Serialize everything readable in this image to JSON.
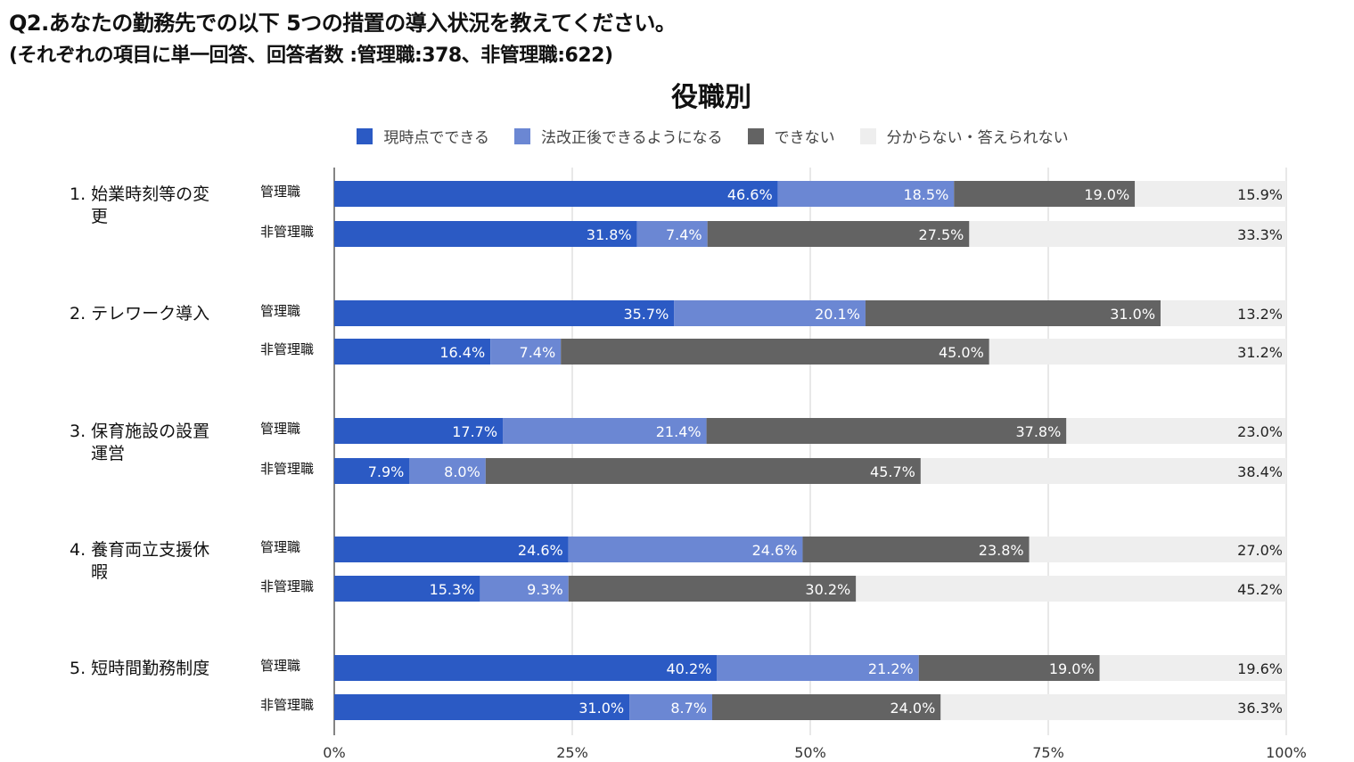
{
  "header": {
    "question": "Q2.あなたの勤務先での以下 5つの措置の導入状況を教えてください。",
    "subtitle": "(それぞれの項目に単一回答、回答者数 :管理職:378、非管理職:622)"
  },
  "chart_data": {
    "type": "bar",
    "orientation": "horizontal",
    "stacked": "percent",
    "title": "役職別",
    "legend_position": "top",
    "xlim": [
      0,
      100
    ],
    "x_ticks": [
      "0%",
      "25%",
      "50%",
      "75%",
      "100%"
    ],
    "series": [
      {
        "name": "現時点でできる",
        "color": "#2b5ac4"
      },
      {
        "name": "法改正後できるようになる",
        "color": "#6b87d3"
      },
      {
        "name": "できない",
        "color": "#636363"
      },
      {
        "name": "分からない・答えられない",
        "color": "#eeeeee"
      }
    ],
    "categories": [
      {
        "label": "1. 始業時刻等の変更",
        "groups": [
          {
            "label": "管理職",
            "values": [
              46.6,
              18.5,
              19.0,
              15.9
            ]
          },
          {
            "label": "非管理職",
            "values": [
              31.8,
              7.4,
              27.5,
              33.3
            ]
          }
        ]
      },
      {
        "label": "2. テレワーク導入",
        "groups": [
          {
            "label": "管理職",
            "values": [
              35.7,
              20.1,
              31.0,
              13.2
            ]
          },
          {
            "label": "非管理職",
            "values": [
              16.4,
              7.4,
              45.0,
              31.2
            ]
          }
        ]
      },
      {
        "label": "3. 保育施設の設置運営",
        "groups": [
          {
            "label": "管理職",
            "values": [
              17.7,
              21.4,
              37.8,
              23.0
            ]
          },
          {
            "label": "非管理職",
            "values": [
              7.9,
              8.0,
              45.7,
              38.4
            ]
          }
        ]
      },
      {
        "label": "4. 養育両立支援休暇",
        "groups": [
          {
            "label": "管理職",
            "values": [
              24.6,
              24.6,
              23.8,
              27.0
            ]
          },
          {
            "label": "非管理職",
            "values": [
              15.3,
              9.3,
              30.2,
              45.2
            ]
          }
        ]
      },
      {
        "label": "5. 短時間勤務制度",
        "groups": [
          {
            "label": "管理職",
            "values": [
              40.2,
              21.2,
              19.0,
              19.6
            ]
          },
          {
            "label": "非管理職",
            "values": [
              31.0,
              8.7,
              24.0,
              36.3
            ]
          }
        ]
      }
    ]
  }
}
